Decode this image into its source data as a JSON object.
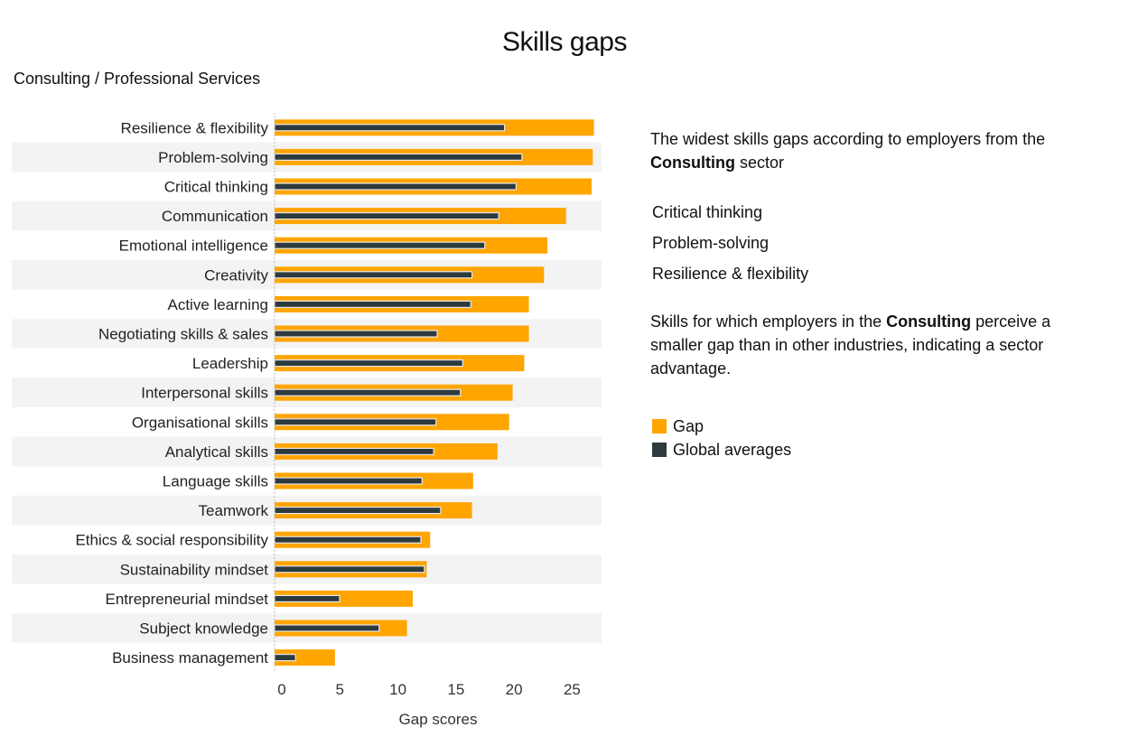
{
  "title": "Skills gaps",
  "subtitle": "Consulting / Professional Services",
  "colors": {
    "gap": "#FFA500",
    "global": "#2D3A3E",
    "band": "#F3F3F3"
  },
  "sidebar": {
    "intro_prefix": "The widest skills gaps according to employers from the",
    "intro_sector": "Consulting",
    "intro_suffix": "sector",
    "top_skills": [
      "Critical thinking",
      "Problem-solving",
      "Resilience & flexibility"
    ],
    "adv_prefix": "Skills for which employers in the",
    "adv_sector": "Consulting",
    "adv_suffix": "perceive a smaller gap than in other industries, indicating a sector advantage.",
    "legend": [
      {
        "label": "Gap",
        "icon": "orange-square-icon"
      },
      {
        "label": "Global averages",
        "icon": "dark-square-icon"
      }
    ]
  },
  "chart_data": {
    "type": "bar",
    "orientation": "horizontal",
    "title": "Skills gaps",
    "xlabel": "Gap scores",
    "ylabel": "",
    "xlim": [
      0,
      28
    ],
    "xticks": [
      0,
      5,
      10,
      15,
      20,
      25
    ],
    "categories": [
      "Resilience & flexibility",
      "Problem-solving",
      "Critical thinking",
      "Communication",
      "Emotional intelligence",
      "Creativity",
      "Active learning",
      "Negotiating skills & sales",
      "Leadership",
      "Interpersonal skills",
      "Organisational skills",
      "Analytical skills",
      "Language skills",
      "Teamwork",
      "Ethics & social responsibility",
      "Sustainability mindset",
      "Entrepreneurial mindset",
      "Subject knowledge",
      "Business management"
    ],
    "series": [
      {
        "name": "Gap",
        "values": [
          27.5,
          27.4,
          27.3,
          25.1,
          23.5,
          23.2,
          21.9,
          21.9,
          21.5,
          20.5,
          20.2,
          19.2,
          17.1,
          17.0,
          13.4,
          13.1,
          11.9,
          11.4,
          5.2
        ]
      },
      {
        "name": "Global averages",
        "values": [
          19.8,
          21.3,
          20.8,
          19.3,
          18.1,
          17.0,
          16.9,
          14.0,
          16.2,
          16.0,
          13.9,
          13.7,
          12.7,
          14.3,
          12.6,
          12.9,
          5.6,
          9.0,
          1.8
        ]
      }
    ]
  }
}
